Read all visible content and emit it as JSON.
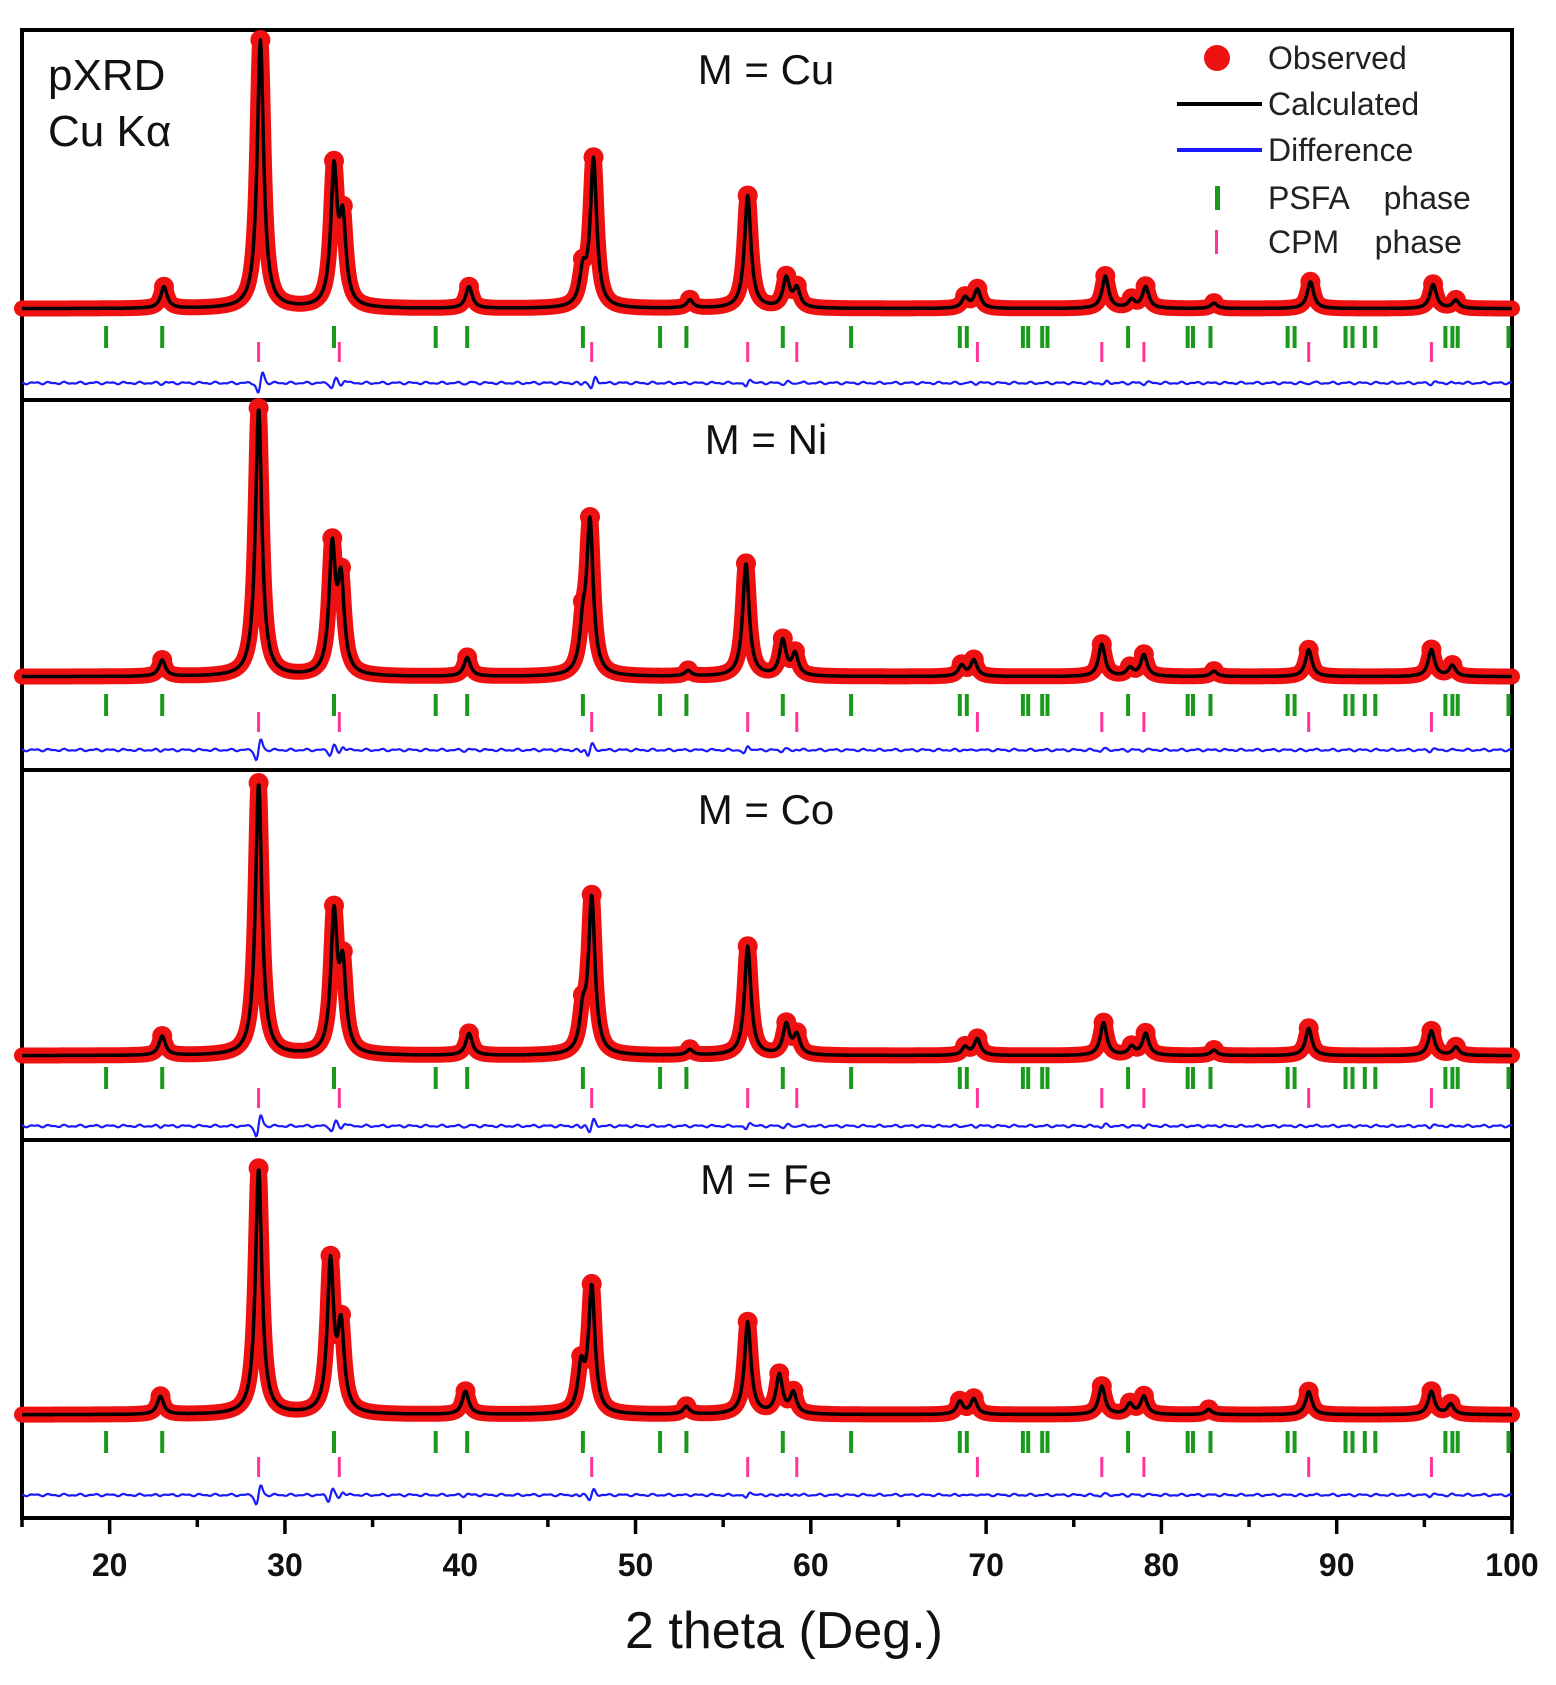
{
  "chart_data": {
    "type": "line",
    "annotation": [
      "pXRD",
      "Cu Kα"
    ],
    "xlabel": "2 theta (Deg.)",
    "xlim": [
      15,
      100
    ],
    "x_ticks": [
      20,
      30,
      40,
      50,
      60,
      70,
      80,
      90,
      100
    ],
    "colors": {
      "observed": "#ee1111",
      "calculated": "#000000",
      "difference": "#1a1aff",
      "psfa": "#1a9a1a",
      "cpm": "#ff3399"
    },
    "legend": {
      "position": "top-right",
      "entries": [
        {
          "key": "observed",
          "label": "Observed"
        },
        {
          "key": "calculated",
          "label": "Calculated"
        },
        {
          "key": "difference",
          "label": "Difference"
        },
        {
          "key": "psfa",
          "label": "PSFA    phase"
        },
        {
          "key": "cpm",
          "label": "CPM    phase"
        }
      ]
    },
    "psfa_ticks": [
      19.8,
      23.0,
      32.8,
      38.6,
      40.4,
      47.0,
      51.4,
      52.9,
      58.4,
      62.3,
      68.5,
      68.9,
      72.1,
      72.4,
      73.2,
      73.5,
      78.1,
      81.5,
      81.8,
      82.8,
      87.2,
      87.6,
      90.5,
      90.9,
      91.6,
      92.2,
      96.2,
      96.6,
      96.9,
      99.8
    ],
    "cpm_ticks": [
      28.5,
      33.1,
      47.5,
      56.4,
      59.2,
      69.5,
      76.6,
      79.0,
      88.4,
      95.4
    ],
    "panels": [
      {
        "label": "M = Cu",
        "peaks": [
          {
            "x": 23.1,
            "h": 0.08
          },
          {
            "x": 28.6,
            "h": 1.0
          },
          {
            "x": 32.8,
            "h": 0.5
          },
          {
            "x": 33.3,
            "h": 0.3
          },
          {
            "x": 40.5,
            "h": 0.08
          },
          {
            "x": 47.0,
            "h": 0.12
          },
          {
            "x": 47.6,
            "h": 0.55
          },
          {
            "x": 53.1,
            "h": 0.03
          },
          {
            "x": 56.4,
            "h": 0.42
          },
          {
            "x": 58.6,
            "h": 0.11
          },
          {
            "x": 59.2,
            "h": 0.07
          },
          {
            "x": 68.8,
            "h": 0.04
          },
          {
            "x": 69.5,
            "h": 0.07
          },
          {
            "x": 76.8,
            "h": 0.12
          },
          {
            "x": 78.3,
            "h": 0.03
          },
          {
            "x": 79.1,
            "h": 0.08
          },
          {
            "x": 83.0,
            "h": 0.02
          },
          {
            "x": 88.5,
            "h": 0.1
          },
          {
            "x": 95.5,
            "h": 0.09
          },
          {
            "x": 96.8,
            "h": 0.03
          }
        ]
      },
      {
        "label": "M = Ni",
        "peaks": [
          {
            "x": 23.0,
            "h": 0.06
          },
          {
            "x": 28.5,
            "h": 1.0
          },
          {
            "x": 32.7,
            "h": 0.46
          },
          {
            "x": 33.2,
            "h": 0.33
          },
          {
            "x": 40.4,
            "h": 0.07
          },
          {
            "x": 47.0,
            "h": 0.15
          },
          {
            "x": 47.4,
            "h": 0.56
          },
          {
            "x": 53.0,
            "h": 0.02
          },
          {
            "x": 56.3,
            "h": 0.42
          },
          {
            "x": 58.4,
            "h": 0.13
          },
          {
            "x": 59.1,
            "h": 0.08
          },
          {
            "x": 68.6,
            "h": 0.04
          },
          {
            "x": 69.3,
            "h": 0.06
          },
          {
            "x": 76.6,
            "h": 0.12
          },
          {
            "x": 78.2,
            "h": 0.03
          },
          {
            "x": 79.0,
            "h": 0.08
          },
          {
            "x": 83.0,
            "h": 0.02
          },
          {
            "x": 88.4,
            "h": 0.1
          },
          {
            "x": 95.4,
            "h": 0.1
          },
          {
            "x": 96.6,
            "h": 0.04
          }
        ]
      },
      {
        "label": "M = Co",
        "peaks": [
          {
            "x": 23.0,
            "h": 0.07
          },
          {
            "x": 28.5,
            "h": 1.0
          },
          {
            "x": 32.8,
            "h": 0.5
          },
          {
            "x": 33.3,
            "h": 0.3
          },
          {
            "x": 40.5,
            "h": 0.08
          },
          {
            "x": 47.0,
            "h": 0.13
          },
          {
            "x": 47.5,
            "h": 0.57
          },
          {
            "x": 53.1,
            "h": 0.02
          },
          {
            "x": 56.4,
            "h": 0.4
          },
          {
            "x": 58.6,
            "h": 0.11
          },
          {
            "x": 59.2,
            "h": 0.07
          },
          {
            "x": 68.8,
            "h": 0.03
          },
          {
            "x": 69.5,
            "h": 0.06
          },
          {
            "x": 76.7,
            "h": 0.12
          },
          {
            "x": 78.3,
            "h": 0.03
          },
          {
            "x": 79.1,
            "h": 0.08
          },
          {
            "x": 83.0,
            "h": 0.02
          },
          {
            "x": 88.4,
            "h": 0.1
          },
          {
            "x": 95.4,
            "h": 0.09
          },
          {
            "x": 96.8,
            "h": 0.03
          }
        ]
      },
      {
        "label": "M = Fe",
        "peaks": [
          {
            "x": 22.9,
            "h": 0.07
          },
          {
            "x": 28.5,
            "h": 0.96
          },
          {
            "x": 32.6,
            "h": 0.58
          },
          {
            "x": 33.2,
            "h": 0.32
          },
          {
            "x": 40.3,
            "h": 0.09
          },
          {
            "x": 46.9,
            "h": 0.17
          },
          {
            "x": 47.5,
            "h": 0.49
          },
          {
            "x": 52.9,
            "h": 0.03
          },
          {
            "x": 56.4,
            "h": 0.36
          },
          {
            "x": 58.2,
            "h": 0.15
          },
          {
            "x": 59.0,
            "h": 0.08
          },
          {
            "x": 68.5,
            "h": 0.05
          },
          {
            "x": 69.3,
            "h": 0.06
          },
          {
            "x": 76.6,
            "h": 0.11
          },
          {
            "x": 78.2,
            "h": 0.04
          },
          {
            "x": 79.0,
            "h": 0.07
          },
          {
            "x": 82.7,
            "h": 0.02
          },
          {
            "x": 88.4,
            "h": 0.09
          },
          {
            "x": 95.4,
            "h": 0.09
          },
          {
            "x": 96.5,
            "h": 0.04
          }
        ]
      }
    ]
  }
}
